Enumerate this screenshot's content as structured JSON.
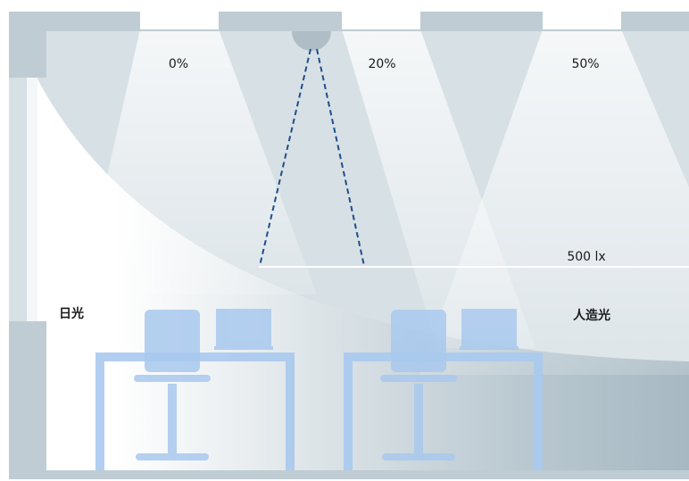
{
  "labels": {
    "zones": [
      "0%",
      "20%",
      "50%"
    ],
    "illuminance": "500 lx",
    "daylight": "日光",
    "artificial_light": "人造光"
  }
}
